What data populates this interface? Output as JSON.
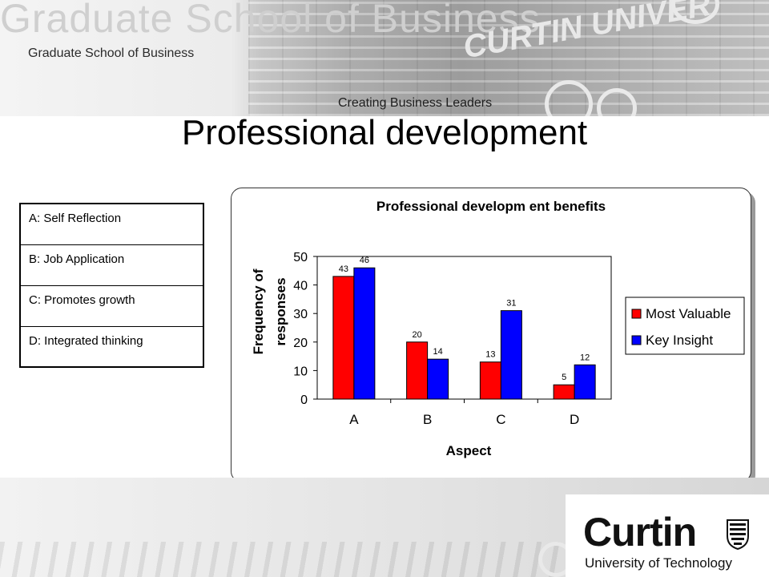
{
  "header": {
    "ghost_text": "Graduate School of Business",
    "ghost_text_2": "CURTIN UNIVER",
    "subtitle": "Graduate School of Business",
    "tagline": "Creating Business Leaders"
  },
  "slide": {
    "title": "Professional development"
  },
  "key_table": {
    "rows": [
      "A: Self Reflection",
      "B: Job Application",
      "C:  Promotes growth",
      "D:  Integrated thinking"
    ]
  },
  "logo": {
    "word": "Curtin",
    "subtitle": "University of Technology"
  },
  "chart_data": {
    "type": "bar",
    "title": "Professional developm ent benefits",
    "xlabel": "Aspect",
    "ylabel": [
      "Frequency of",
      "responses"
    ],
    "categories": [
      "A",
      "B",
      "C",
      "D"
    ],
    "ylim": [
      0,
      50
    ],
    "yticks": [
      0,
      10,
      20,
      30,
      40,
      50
    ],
    "legend_position": "right",
    "series": [
      {
        "name": "Most Valuable",
        "color": "#ff0000",
        "values": [
          43,
          20,
          13,
          5
        ],
        "labels": [
          "43",
          "20",
          "13",
          "5"
        ]
      },
      {
        "name": "Key Insight",
        "color": "#0000ff",
        "values": [
          46,
          14,
          31,
          12
        ],
        "labels": [
          "46",
          "14",
          "31",
          "12"
        ]
      }
    ]
  }
}
